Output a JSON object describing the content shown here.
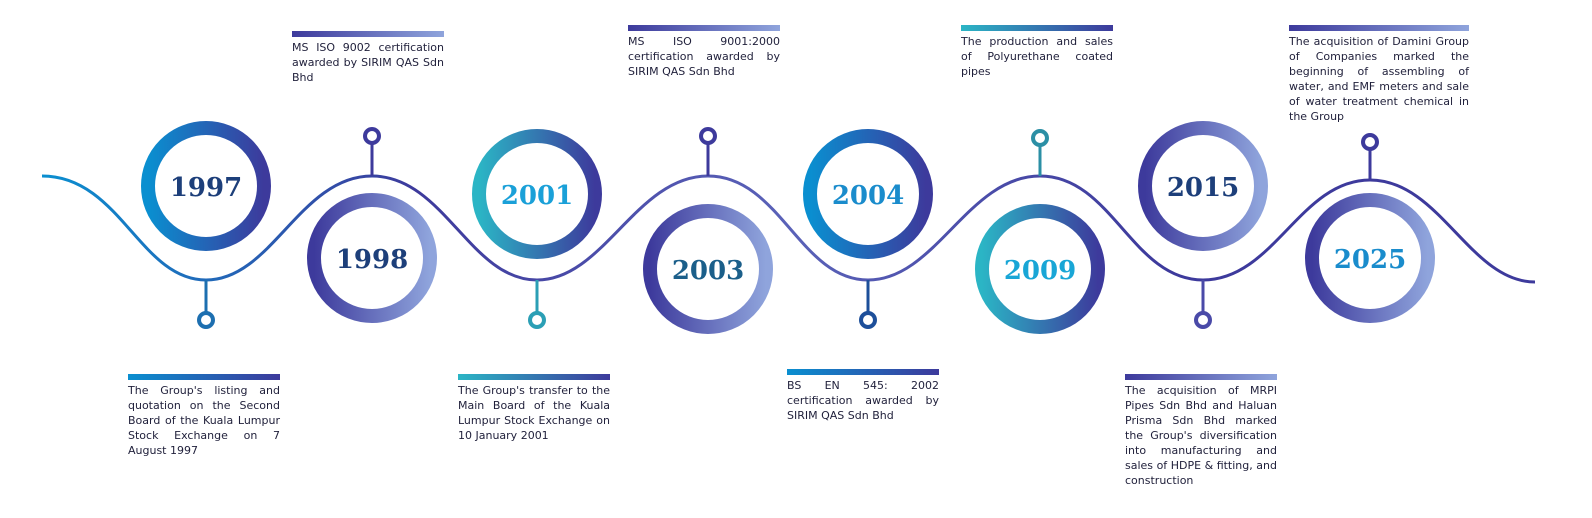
{
  "milestones": [
    {
      "year": "1997",
      "text": "The Group's listing and quotation on the Second Board of the Kuala Lumpur Stock Exchange on 7 August 1997"
    },
    {
      "year": "1998",
      "text": "MS ISO 9002 certification awarded by SIRIM QAS Sdn Bhd"
    },
    {
      "year": "2001",
      "text": "The Group's transfer to the Main Board of the Kuala Lumpur Stock Exchange on 10 January 2001"
    },
    {
      "year": "2003",
      "text": "MS ISO 9001:2000 certification awarded by SIRIM QAS Sdn Bhd"
    },
    {
      "year": "2004",
      "text": "BS EN 545: 2002 certification awarded by SIRIM QAS Sdn Bhd"
    },
    {
      "year": "2009",
      "text": "The production and sales of Polyurethane coated pipes"
    },
    {
      "year": "2015",
      "text": "The acquisition of MRPI Pipes Sdn Bhd and Haluan Prisma Sdn Bhd marked the Group's diversification into manufacturing and sales of HDPE & fitting, and construction"
    },
    {
      "year": "2025",
      "text": "The acquisition of Damini Group of Companies marked the beginning of assembling of water, and EMF meters and sale of water treatment chemical in the Group"
    }
  ],
  "colors": {
    "blue": "#0a8fd0",
    "indigo": "#3d3a9c",
    "teal": "#2bb5c5",
    "light": "#8fa4dc",
    "navy": "#1d3f7a"
  }
}
